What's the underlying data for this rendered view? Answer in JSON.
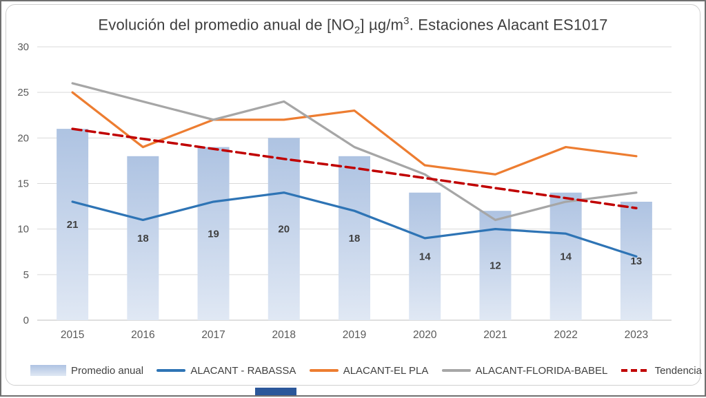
{
  "artifacts": {
    "bottom_strip_color": "#2b579a"
  },
  "chart_data": {
    "type": "bar+line combo",
    "title": "Evolución del promedio anual de [NO2] µg/m3. Estaciones Alacant ES1017",
    "title_parts": {
      "p1": "Evolución del promedio anual de [NO",
      "sub": "2",
      "p2": "] µg/m",
      "sup": "3",
      "p3": ". Estaciones Alacant ES1017"
    },
    "categories": [
      "2015",
      "2016",
      "2017",
      "2018",
      "2019",
      "2020",
      "2021",
      "2022",
      "2023"
    ],
    "bars": {
      "name": "Promedio anual",
      "values": [
        21,
        18,
        19,
        20,
        18,
        14,
        12,
        14,
        13
      ],
      "labels": [
        "21",
        "18",
        "19",
        "20",
        "18",
        "14",
        "12",
        "14",
        "13"
      ],
      "fill_top": "#aec3e2",
      "fill_bottom": "#e0e8f4"
    },
    "series": [
      {
        "name": "ALACANT - RABASSA",
        "color": "#2e74b5",
        "dashed": false,
        "values": [
          13,
          11,
          13,
          14,
          12,
          9,
          10,
          9.5,
          7
        ]
      },
      {
        "name": "ALACANT-EL PLA",
        "color": "#ed7d31",
        "dashed": false,
        "values": [
          25,
          19,
          22,
          22,
          23,
          17,
          16,
          19,
          18
        ]
      },
      {
        "name": "ALACANT-FLORIDA-BABEL",
        "color": "#a6a6a6",
        "dashed": false,
        "values": [
          26,
          24,
          22,
          24,
          19,
          16,
          11,
          13,
          14
        ]
      },
      {
        "name": "Tendencia",
        "color": "#c00000",
        "dashed": true,
        "values": [
          21,
          19.9,
          18.8,
          17.7,
          16.7,
          15.6,
          14.5,
          13.4,
          12.3
        ]
      }
    ],
    "yticks": [
      0,
      5,
      10,
      15,
      20,
      25,
      30
    ],
    "ylim": [
      0,
      30
    ],
    "grid": true,
    "legend_position": "bottom",
    "colors": {
      "gridline": "#d9d9d9",
      "axis_text": "#595959",
      "bar_label_text": "#3f3f3f",
      "title_text": "#3d3d3d"
    }
  }
}
